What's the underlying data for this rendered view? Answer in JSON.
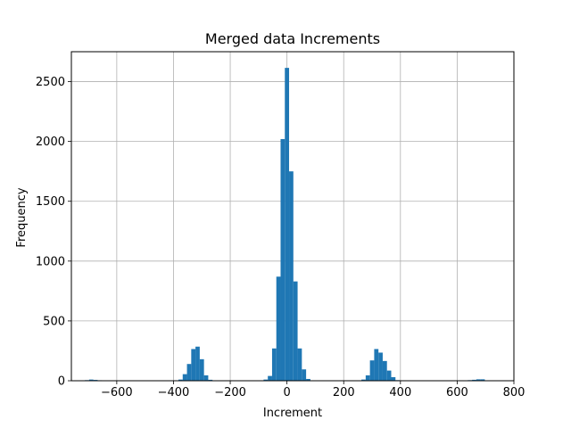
{
  "chart_data": {
    "type": "bar",
    "title": "Merged data Increments",
    "xlabel": "Increment",
    "ylabel": "Frequency",
    "xlim": [
      -760,
      800
    ],
    "ylim": [
      0,
      2750
    ],
    "grid": true,
    "bar_color": "#1f77b4",
    "bin_width": 15,
    "xticks": [
      -600,
      -400,
      -200,
      0,
      200,
      400,
      600,
      800
    ],
    "xtick_labels": [
      "−600",
      "−400",
      "−200",
      "0",
      "200",
      "400",
      "600",
      "800"
    ],
    "yticks": [
      0,
      500,
      1000,
      1500,
      2000,
      2500
    ],
    "ytick_labels": [
      "0",
      "500",
      "1000",
      "1500",
      "2000",
      "2500"
    ],
    "bins": [
      {
        "x": -705,
        "value": 5
      },
      {
        "x": -690,
        "value": 10
      },
      {
        "x": -675,
        "value": 7
      },
      {
        "x": -660,
        "value": 4
      },
      {
        "x": -375,
        "value": 10
      },
      {
        "x": -360,
        "value": 55
      },
      {
        "x": -345,
        "value": 140
      },
      {
        "x": -330,
        "value": 265
      },
      {
        "x": -315,
        "value": 285
      },
      {
        "x": -300,
        "value": 180
      },
      {
        "x": -285,
        "value": 45
      },
      {
        "x": -270,
        "value": 8
      },
      {
        "x": -75,
        "value": 10
      },
      {
        "x": -60,
        "value": 40
      },
      {
        "x": -45,
        "value": 270
      },
      {
        "x": -30,
        "value": 870
      },
      {
        "x": -15,
        "value": 2020
      },
      {
        "x": 0,
        "value": 2615
      },
      {
        "x": 15,
        "value": 1750
      },
      {
        "x": 30,
        "value": 830
      },
      {
        "x": 45,
        "value": 270
      },
      {
        "x": 60,
        "value": 95
      },
      {
        "x": 75,
        "value": 15
      },
      {
        "x": 270,
        "value": 10
      },
      {
        "x": 285,
        "value": 45
      },
      {
        "x": 300,
        "value": 170
      },
      {
        "x": 315,
        "value": 265
      },
      {
        "x": 330,
        "value": 235
      },
      {
        "x": 345,
        "value": 165
      },
      {
        "x": 360,
        "value": 85
      },
      {
        "x": 375,
        "value": 30
      },
      {
        "x": 390,
        "value": 5
      },
      {
        "x": 645,
        "value": 5
      },
      {
        "x": 660,
        "value": 8
      },
      {
        "x": 675,
        "value": 12
      },
      {
        "x": 690,
        "value": 12
      }
    ]
  }
}
